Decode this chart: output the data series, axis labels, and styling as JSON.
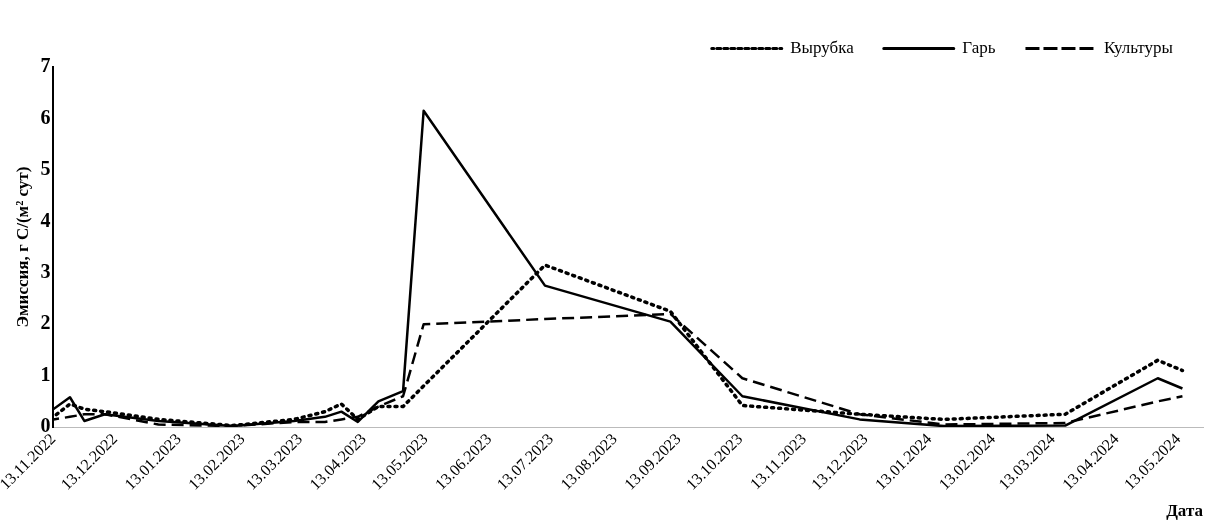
{
  "chart_data": {
    "type": "line",
    "xlabel": "Дата",
    "ylabel": "Эмиссия, г С/(м² сут)",
    "x": [
      "2022-11-13",
      "2022-11-21",
      "2022-11-28",
      "2022-12-08",
      "2023-01-03",
      "2023-02-08",
      "2023-03-10",
      "2023-03-25",
      "2023-04-02",
      "2023-04-10",
      "2023-04-20",
      "2023-05-02",
      "2023-05-12",
      "2023-07-10",
      "2023-09-09",
      "2023-10-14",
      "2023-12-10",
      "2024-01-20",
      "2024-03-19",
      "2024-05-03",
      "2024-05-15"
    ],
    "series": [
      {
        "name": "Вырубка",
        "color": "#000000",
        "line_style": "dotted",
        "values": [
          0.2,
          0.45,
          0.35,
          0.3,
          0.15,
          0.03,
          0.15,
          0.3,
          0.45,
          0.15,
          0.4,
          0.4,
          0.8,
          3.15,
          2.25,
          0.42,
          0.25,
          0.15,
          0.25,
          1.3,
          1.1
        ]
      },
      {
        "name": "Гарь",
        "color": "#000000",
        "line_style": "solid",
        "values": [
          0.35,
          0.58,
          0.12,
          0.25,
          0.12,
          0.02,
          0.12,
          0.2,
          0.3,
          0.1,
          0.5,
          0.7,
          6.15,
          2.75,
          2.05,
          0.6,
          0.15,
          0.02,
          0.03,
          0.95,
          0.75
        ]
      },
      {
        "name": "Культуры",
        "color": "#000000",
        "line_style": "dashed",
        "values": [
          0.15,
          0.2,
          0.25,
          0.25,
          0.05,
          0.02,
          0.1,
          0.1,
          0.15,
          0.2,
          0.4,
          0.6,
          2.0,
          2.1,
          2.2,
          0.95,
          0.25,
          0.05,
          0.08,
          0.5,
          0.6
        ]
      }
    ],
    "xlim": [
      "2022-11-13",
      "2024-05-25"
    ],
    "xticks": [
      {
        "value": "2022-11-13",
        "label": "13.11.2022"
      },
      {
        "value": "2022-12-13",
        "label": "13.12.2022"
      },
      {
        "value": "2023-01-13",
        "label": "13.01.2023"
      },
      {
        "value": "2023-02-13",
        "label": "13.02.2023"
      },
      {
        "value": "2023-03-13",
        "label": "13.03.2023"
      },
      {
        "value": "2023-04-13",
        "label": "13.04.2023"
      },
      {
        "value": "2023-05-13",
        "label": "13.05.2023"
      },
      {
        "value": "2023-06-13",
        "label": "13.06.2023"
      },
      {
        "value": "2023-07-13",
        "label": "13.07.2023"
      },
      {
        "value": "2023-08-13",
        "label": "13.08.2023"
      },
      {
        "value": "2023-09-13",
        "label": "13.09.2023"
      },
      {
        "value": "2023-10-13",
        "label": "13.10.2023"
      },
      {
        "value": "2023-11-13",
        "label": "13.11.2023"
      },
      {
        "value": "2023-12-13",
        "label": "13.12.2023"
      },
      {
        "value": "2024-01-13",
        "label": "13.01.2024"
      },
      {
        "value": "2024-02-13",
        "label": "13.02.2024"
      },
      {
        "value": "2024-03-13",
        "label": "13.03.2024"
      },
      {
        "value": "2024-04-13",
        "label": "13.04.2024"
      },
      {
        "value": "2024-05-13",
        "label": "13.05.2024"
      }
    ],
    "ylim": [
      0,
      7
    ],
    "yticks": [
      0,
      1,
      2,
      3,
      4,
      5,
      6,
      7
    ],
    "grid": false,
    "legend": "top right",
    "marker": "none"
  }
}
